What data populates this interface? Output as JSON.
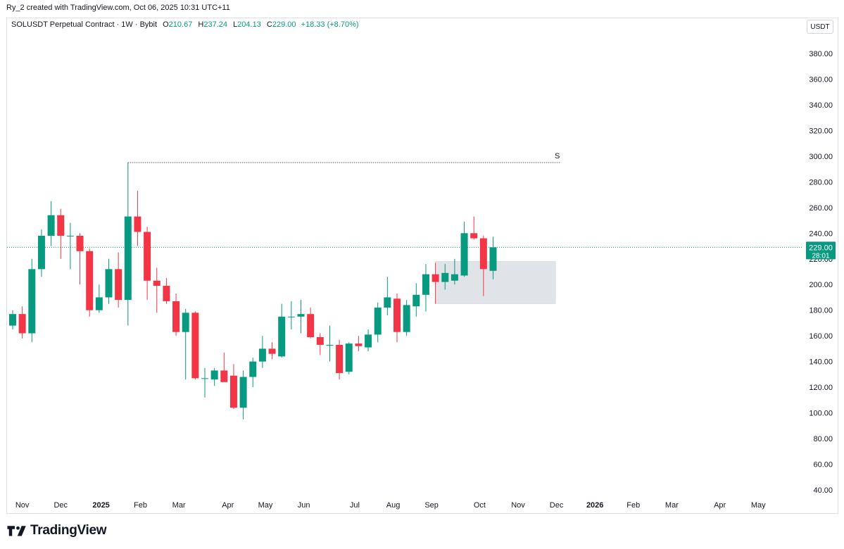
{
  "header": {
    "credit": "Ry_2 created with TradingView.com, Oct 06, 2025 10:31 UTC+11"
  },
  "legend": {
    "symbol": "SOLUSDT Perpetual Contract · 1W · Bybit",
    "open_key": "O",
    "open": "210.67",
    "high_key": "H",
    "high": "237.24",
    "low_key": "L",
    "low": "204.13",
    "close_key": "C",
    "close": "229.00",
    "change": "+18.33 (+8.70%)"
  },
  "unit": "USDT",
  "brand": {
    "name": "TradingView"
  },
  "colors": {
    "up": "#089981",
    "down": "#f23645",
    "zone": "#e0e3e7",
    "grid_line": "#089981"
  },
  "chart_data": {
    "type": "candlestick",
    "interval": "1W",
    "ylim": [
      30,
      400
    ],
    "y_ticks": [
      "40.00",
      "60.00",
      "80.00",
      "100.00",
      "120.00",
      "140.00",
      "160.00",
      "180.00",
      "200.00",
      "220.00",
      "240.00",
      "260.00",
      "280.00",
      "300.00",
      "320.00",
      "340.00",
      "360.00",
      "380.00"
    ],
    "x_ticks": [
      {
        "label": "Nov",
        "index": 1
      },
      {
        "label": "Dec",
        "index": 5
      },
      {
        "label": "2025",
        "index": 9.2
      },
      {
        "label": "Feb",
        "index": 13.3
      },
      {
        "label": "Mar",
        "index": 17.3
      },
      {
        "label": "Apr",
        "index": 22.4
      },
      {
        "label": "May",
        "index": 26.3
      },
      {
        "label": "Jun",
        "index": 30.3
      },
      {
        "label": "Jul",
        "index": 35.6
      },
      {
        "label": "Aug",
        "index": 39.6
      },
      {
        "label": "Sep",
        "index": 43.6
      },
      {
        "label": "Oct",
        "index": 48.6
      },
      {
        "label": "Nov",
        "index": 52.6
      },
      {
        "label": "Dec",
        "index": 56.6
      },
      {
        "label": "2026",
        "index": 60.6
      },
      {
        "label": "Feb",
        "index": 64.6
      },
      {
        "label": "Mar",
        "index": 68.6
      },
      {
        "label": "Apr",
        "index": 73.6
      },
      {
        "label": "May",
        "index": 77.6
      }
    ],
    "candles": [
      {
        "o": 168,
        "h": 180,
        "l": 165,
        "c": 177
      },
      {
        "o": 177,
        "h": 183,
        "l": 158,
        "c": 162
      },
      {
        "o": 162,
        "h": 220,
        "l": 155,
        "c": 212
      },
      {
        "o": 212,
        "h": 243,
        "l": 206,
        "c": 238
      },
      {
        "o": 238,
        "h": 265,
        "l": 230,
        "c": 254
      },
      {
        "o": 254,
        "h": 259,
        "l": 220,
        "c": 238
      },
      {
        "o": 238,
        "h": 248,
        "l": 212,
        "c": 238
      },
      {
        "o": 238,
        "h": 240,
        "l": 200,
        "c": 226
      },
      {
        "o": 226,
        "h": 228,
        "l": 175,
        "c": 180
      },
      {
        "o": 180,
        "h": 200,
        "l": 178,
        "c": 190
      },
      {
        "o": 190,
        "h": 220,
        "l": 185,
        "c": 212
      },
      {
        "o": 212,
        "h": 225,
        "l": 182,
        "c": 188
      },
      {
        "o": 188,
        "h": 295,
        "l": 168,
        "c": 253
      },
      {
        "o": 253,
        "h": 273,
        "l": 230,
        "c": 241
      },
      {
        "o": 241,
        "h": 245,
        "l": 188,
        "c": 203
      },
      {
        "o": 203,
        "h": 213,
        "l": 178,
        "c": 199
      },
      {
        "o": 199,
        "h": 205,
        "l": 185,
        "c": 187
      },
      {
        "o": 187,
        "h": 193,
        "l": 160,
        "c": 163
      },
      {
        "o": 163,
        "h": 181,
        "l": 126,
        "c": 178
      },
      {
        "o": 178,
        "h": 179,
        "l": 126,
        "c": 127
      },
      {
        "o": 127,
        "h": 135,
        "l": 112,
        "c": 127
      },
      {
        "o": 126,
        "h": 135,
        "l": 121,
        "c": 133
      },
      {
        "o": 133,
        "h": 147,
        "l": 125,
        "c": 124
      },
      {
        "o": 129,
        "h": 138,
        "l": 103,
        "c": 104
      },
      {
        "o": 104,
        "h": 133,
        "l": 95,
        "c": 128
      },
      {
        "o": 128,
        "h": 143,
        "l": 120,
        "c": 140
      },
      {
        "o": 140,
        "h": 160,
        "l": 135,
        "c": 150
      },
      {
        "o": 150,
        "h": 155,
        "l": 142,
        "c": 146
      },
      {
        "o": 144,
        "h": 185,
        "l": 143,
        "c": 175
      },
      {
        "o": 175,
        "h": 187,
        "l": 165,
        "c": 175
      },
      {
        "o": 175,
        "h": 188,
        "l": 162,
        "c": 177
      },
      {
        "o": 177,
        "h": 182,
        "l": 158,
        "c": 159
      },
      {
        "o": 159,
        "h": 162,
        "l": 145,
        "c": 153
      },
      {
        "o": 153,
        "h": 168,
        "l": 140,
        "c": 153
      },
      {
        "o": 153,
        "h": 157,
        "l": 126,
        "c": 131
      },
      {
        "o": 132,
        "h": 155,
        "l": 130,
        "c": 154
      },
      {
        "o": 154,
        "h": 160,
        "l": 148,
        "c": 152
      },
      {
        "o": 151,
        "h": 165,
        "l": 148,
        "c": 161
      },
      {
        "o": 161,
        "h": 186,
        "l": 155,
        "c": 182
      },
      {
        "o": 182,
        "h": 206,
        "l": 176,
        "c": 190
      },
      {
        "o": 189,
        "h": 193,
        "l": 155,
        "c": 163
      },
      {
        "o": 163,
        "h": 188,
        "l": 160,
        "c": 184
      },
      {
        "o": 183,
        "h": 201,
        "l": 175,
        "c": 192
      },
      {
        "o": 192,
        "h": 216,
        "l": 179,
        "c": 208
      },
      {
        "o": 208,
        "h": 217,
        "l": 185,
        "c": 202
      },
      {
        "o": 202,
        "h": 216,
        "l": 196,
        "c": 209
      },
      {
        "o": 203,
        "h": 220,
        "l": 200,
        "c": 208
      },
      {
        "o": 207,
        "h": 249,
        "l": 206,
        "c": 240
      },
      {
        "o": 240,
        "h": 253,
        "l": 235,
        "c": 236
      },
      {
        "o": 236,
        "h": 238,
        "l": 191,
        "c": 212
      },
      {
        "o": 210.67,
        "h": 237.24,
        "l": 204.13,
        "c": 229
      }
    ],
    "resistance": {
      "value": 295,
      "label": "S",
      "from_index": 12,
      "to_index": 57
    },
    "zone": {
      "top": 218,
      "bottom": 185,
      "from_index": 44,
      "to_index": 56.5
    },
    "last_price": {
      "value": 229,
      "label": "229.00",
      "countdown": "28:01"
    }
  }
}
